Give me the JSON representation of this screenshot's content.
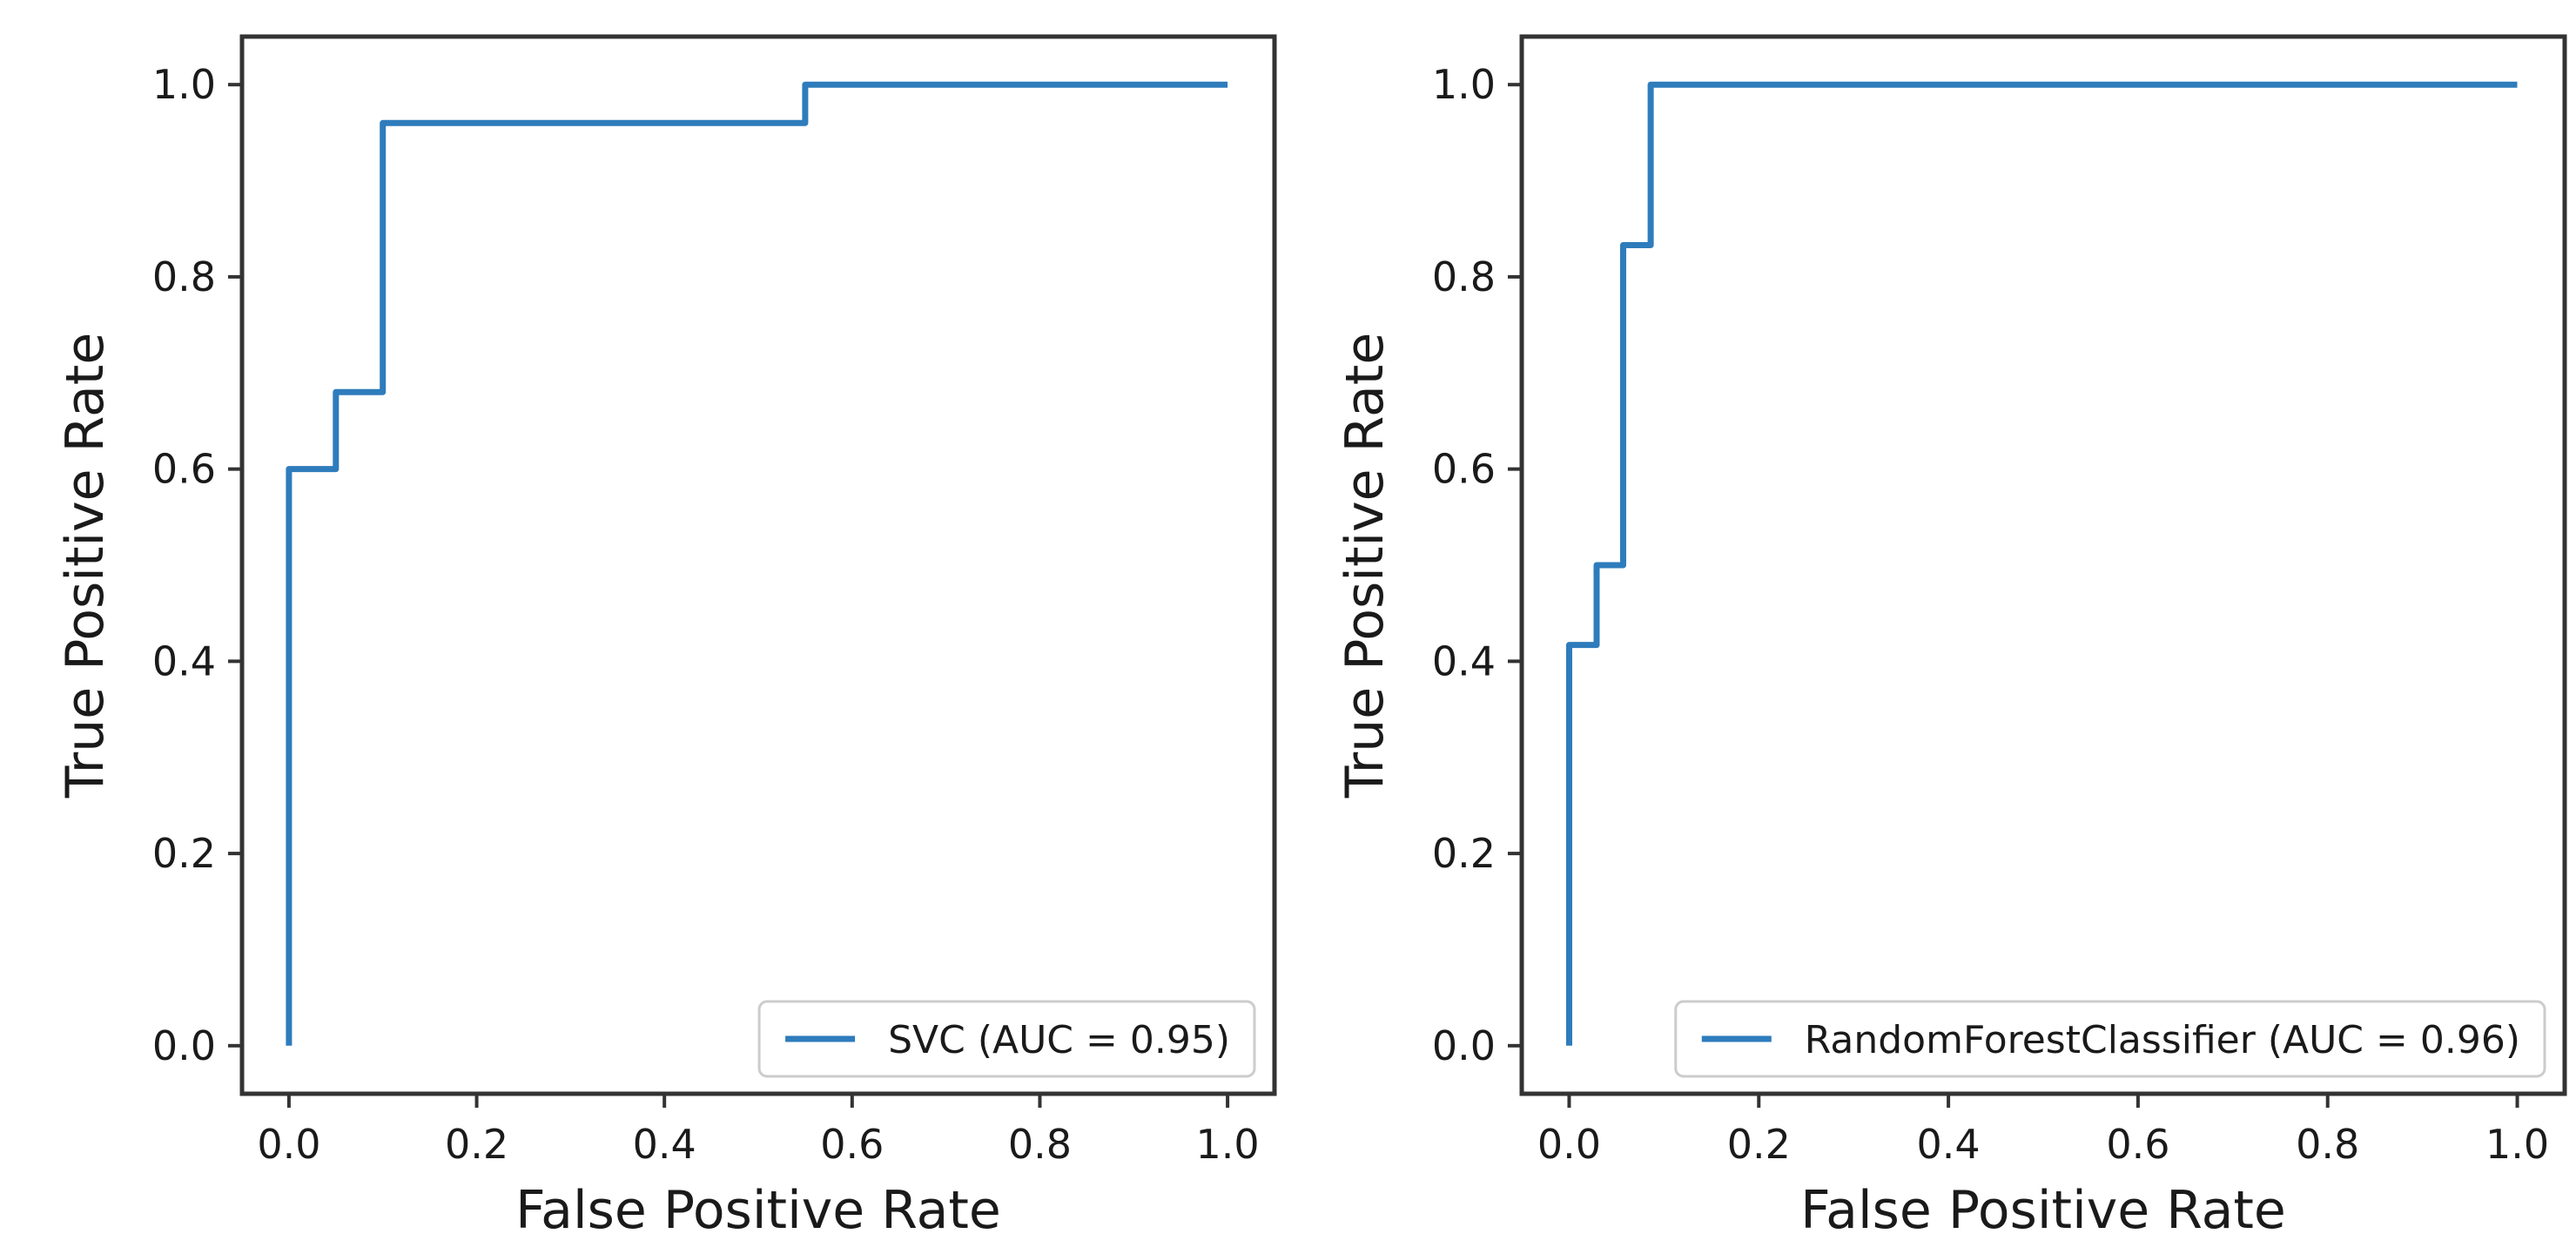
{
  "figure": {
    "background_color": "#ffffff",
    "curve_color": "#2e7cbc",
    "spine_color": "#333333",
    "text_color": "#1a1a1a",
    "legend_border_color": "#cccccc",
    "legend_background": "#ffffff"
  },
  "chart_data": [
    {
      "type": "line",
      "subtype": "roc-curve",
      "title": "",
      "xlabel": "False Positive Rate",
      "ylabel": "True Positive Rate",
      "xlim": [
        -0.05,
        1.05
      ],
      "ylim": [
        -0.05,
        1.05
      ],
      "xticks": [
        "0.0",
        "0.2",
        "0.4",
        "0.6",
        "0.8",
        "1.0"
      ],
      "yticks": [
        "0.0",
        "0.2",
        "0.4",
        "0.6",
        "0.8",
        "1.0"
      ],
      "grid": false,
      "legend_position": "lower right",
      "series": [
        {
          "name": "SVC (AUC = 0.95)",
          "classifier": "SVC",
          "auc": 0.95,
          "x": [
            0,
            0,
            0.05,
            0.05,
            0.1,
            0.1,
            0.55,
            0.55,
            1.0
          ],
          "y": [
            0,
            0.6,
            0.6,
            0.68,
            0.68,
            0.96,
            0.96,
            1.0,
            1.0
          ]
        }
      ]
    },
    {
      "type": "line",
      "subtype": "roc-curve",
      "title": "",
      "xlabel": "False Positive Rate",
      "ylabel": "True Positive Rate",
      "xlim": [
        -0.05,
        1.05
      ],
      "ylim": [
        -0.05,
        1.05
      ],
      "xticks": [
        "0.0",
        "0.2",
        "0.4",
        "0.6",
        "0.8",
        "1.0"
      ],
      "yticks": [
        "0.0",
        "0.2",
        "0.4",
        "0.6",
        "0.8",
        "1.0"
      ],
      "grid": false,
      "legend_position": "lower right",
      "series": [
        {
          "name": "RandomForestClassifier (AUC = 0.96)",
          "classifier": "RandomForestClassifier",
          "auc": 0.96,
          "x": [
            0,
            0,
            0.029,
            0.029,
            0.057,
            0.057,
            0.086,
            0.086,
            1.0
          ],
          "y": [
            0,
            0.417,
            0.417,
            0.5,
            0.5,
            0.833,
            0.833,
            1.0,
            1.0
          ]
        }
      ]
    }
  ]
}
